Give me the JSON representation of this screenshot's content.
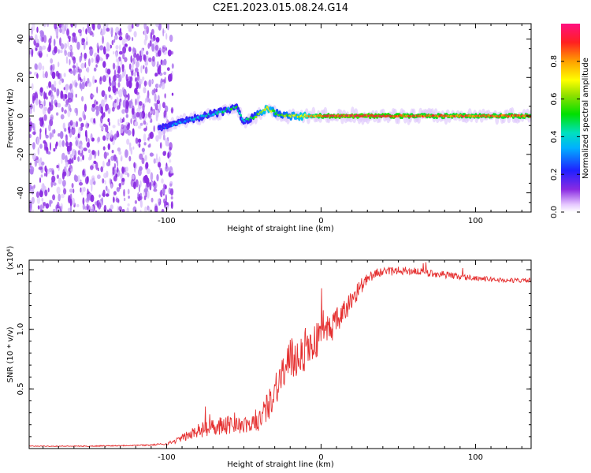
{
  "figure": {
    "title": "C2E1.2023.015.08.24.G14"
  },
  "chart_data": [
    {
      "type": "heatmap",
      "xlabel": "Height of straight line (km)",
      "ylabel": "Frequency (Hz)",
      "xlim": [
        -189,
        136
      ],
      "ylim": [
        -50,
        48
      ],
      "xticks": [
        -100,
        0,
        100
      ],
      "xtick_labels": [
        "-100",
        "0",
        "100"
      ],
      "yticks": [
        40,
        20,
        0,
        -20,
        -40
      ],
      "ytick_labels": [
        "40",
        "20",
        "0",
        "-20",
        "-40"
      ],
      "colorbar": {
        "label": "Normalized spectral amplitude",
        "range": [
          0,
          1
        ],
        "ticks": [
          0,
          0.2,
          0.4,
          0.6,
          0.8
        ],
        "tick_labels": [
          "0.0",
          "0.2",
          "0.4",
          "0.6",
          "0.8"
        ],
        "colormap": "rainbow (white-violet-blue-cyan-green-yellow-red-magenta)"
      },
      "features": {
        "noise_region_x": [
          -189,
          -102
        ],
        "noise_region_color": "#8a2be2",
        "signal_trace": {
          "x": [
            -105,
            -95,
            -85,
            -75,
            -65,
            -55,
            -50,
            -42,
            -35,
            -28,
            -20,
            -10,
            0,
            10,
            30,
            60,
            90,
            120,
            136
          ],
          "y": [
            -7,
            -4,
            -2,
            0,
            2,
            5,
            -3,
            0,
            4,
            1,
            0,
            0,
            0,
            0,
            0,
            0,
            0,
            0,
            0
          ],
          "amplitude": [
            0.25,
            0.35,
            0.4,
            0.45,
            0.45,
            0.5,
            0.45,
            0.6,
            0.75,
            0.6,
            0.65,
            0.75,
            0.85,
            0.9,
            0.9,
            0.85,
            0.85,
            0.85,
            0.85
          ]
        }
      }
    },
    {
      "type": "line",
      "xlabel": "Height of straight line (km)",
      "ylabel": "SNR (10 * v/v)",
      "y_multiplier": "(x10⁴)",
      "xlim": [
        -189,
        136
      ],
      "ylim": [
        0,
        1.58
      ],
      "xticks": [
        -100,
        0,
        100
      ],
      "xtick_labels": [
        "-100",
        "0",
        "100"
      ],
      "yticks": [
        0.5,
        1.0,
        1.5
      ],
      "ytick_labels": [
        "0.5",
        "1.0",
        "1.5"
      ],
      "line_color": "#e53030",
      "series_envelope": {
        "x": [
          -189,
          -150,
          -110,
          -100,
          -95,
          -90,
          -80,
          -70,
          -60,
          -50,
          -45,
          -40,
          -35,
          -30,
          -25,
          -20,
          -15,
          -10,
          -5,
          0,
          5,
          10,
          15,
          20,
          25,
          30,
          35,
          40,
          50,
          60,
          70,
          80,
          90,
          100,
          110,
          120,
          136
        ],
        "mean": [
          0.02,
          0.02,
          0.03,
          0.04,
          0.06,
          0.09,
          0.14,
          0.19,
          0.2,
          0.19,
          0.2,
          0.24,
          0.33,
          0.5,
          0.63,
          0.72,
          0.78,
          0.82,
          0.88,
          0.95,
          1.0,
          1.06,
          1.14,
          1.25,
          1.35,
          1.42,
          1.47,
          1.48,
          1.49,
          1.49,
          1.47,
          1.46,
          1.44,
          1.43,
          1.42,
          1.41,
          1.41
        ],
        "noise": [
          0.003,
          0.004,
          0.006,
          0.01,
          0.02,
          0.03,
          0.06,
          0.08,
          0.08,
          0.07,
          0.07,
          0.1,
          0.12,
          0.15,
          0.18,
          0.2,
          0.18,
          0.17,
          0.16,
          0.14,
          0.13,
          0.12,
          0.1,
          0.09,
          0.07,
          0.05,
          0.04,
          0.035,
          0.035,
          0.035,
          0.03,
          0.03,
          0.025,
          0.02,
          0.02,
          0.02,
          0.02
        ]
      }
    }
  ]
}
